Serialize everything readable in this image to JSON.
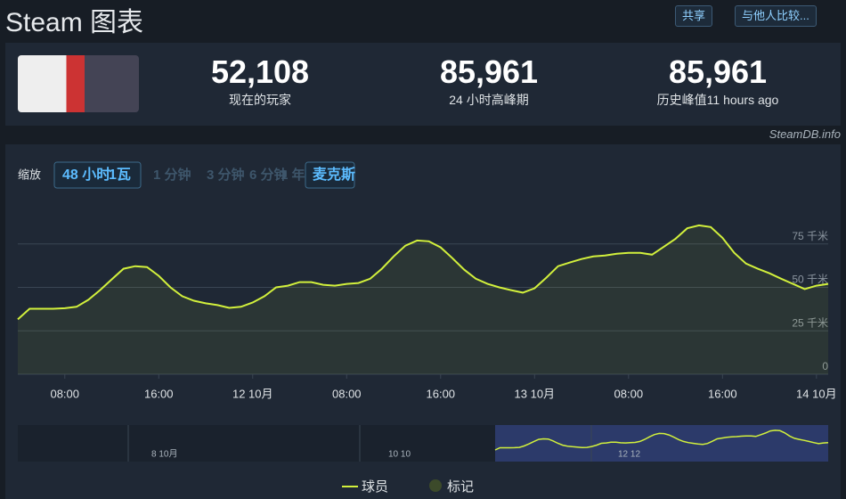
{
  "header": {
    "title": "Steam 图表",
    "buttons": [
      "共享",
      "与他人比较..."
    ]
  },
  "stats": [
    {
      "value": "52,108",
      "label": "现在的玩家"
    },
    {
      "value": "85,961",
      "label": "24 小时高峰期"
    },
    {
      "value": "85,961",
      "label": "历史峰值11 hours ago"
    }
  ],
  "source": "SteamDB.info",
  "zoom": {
    "label": "缩放",
    "options": [
      "48 小时",
      "1瓦",
      "1 分钟",
      "3 分钟",
      "6 分钟",
      "1 年",
      "麦克斯"
    ]
  },
  "chart_data": {
    "type": "line",
    "xlim": [
      0,
      69
    ],
    "xticks": [
      {
        "value": 4,
        "label": "08:00"
      },
      {
        "value": 12,
        "label": "16:00"
      },
      {
        "value": 20,
        "label": "12 10月"
      },
      {
        "value": 28,
        "label": "08:00"
      },
      {
        "value": 36,
        "label": "16:00"
      },
      {
        "value": 44,
        "label": "13 10月"
      },
      {
        "value": 52,
        "label": "08:00"
      },
      {
        "value": 60,
        "label": "16:00"
      },
      {
        "value": 68,
        "label": "14 10月"
      }
    ],
    "ylim": [
      0,
      100000
    ],
    "yticks": [
      0,
      {
        "value": 25000,
        "label": "25 千米"
      },
      {
        "value": 50000,
        "label": "50 千米"
      },
      {
        "value": 75000,
        "label": "75 千米"
      }
    ],
    "grid": true,
    "series": [
      {
        "name": "球员",
        "color": "#d2f03c",
        "values": [
          31600,
          37700,
          37700,
          37700,
          38000,
          38800,
          42800,
          48400,
          54600,
          60700,
          62200,
          61700,
          56600,
          50000,
          44900,
          42300,
          40800,
          39800,
          38200,
          38800,
          41300,
          44900,
          50000,
          51000,
          53000,
          53000,
          51500,
          51000,
          52000,
          52500,
          55000,
          60700,
          67800,
          74000,
          77000,
          76500,
          73000,
          66800,
          60200,
          55000,
          52000,
          50000,
          48400,
          47000,
          49500,
          55600,
          62200,
          64300,
          66300,
          67800,
          68300,
          69400,
          69900,
          69900,
          68800,
          73400,
          78000,
          84000,
          85700,
          84700,
          78500,
          69900,
          63700,
          60700,
          58100,
          55000,
          52000,
          49000,
          51000,
          52000
        ]
      }
    ],
    "markers_legend": "标记",
    "navigator": [
      "8 10月",
      "10 10",
      "12 12"
    ]
  }
}
